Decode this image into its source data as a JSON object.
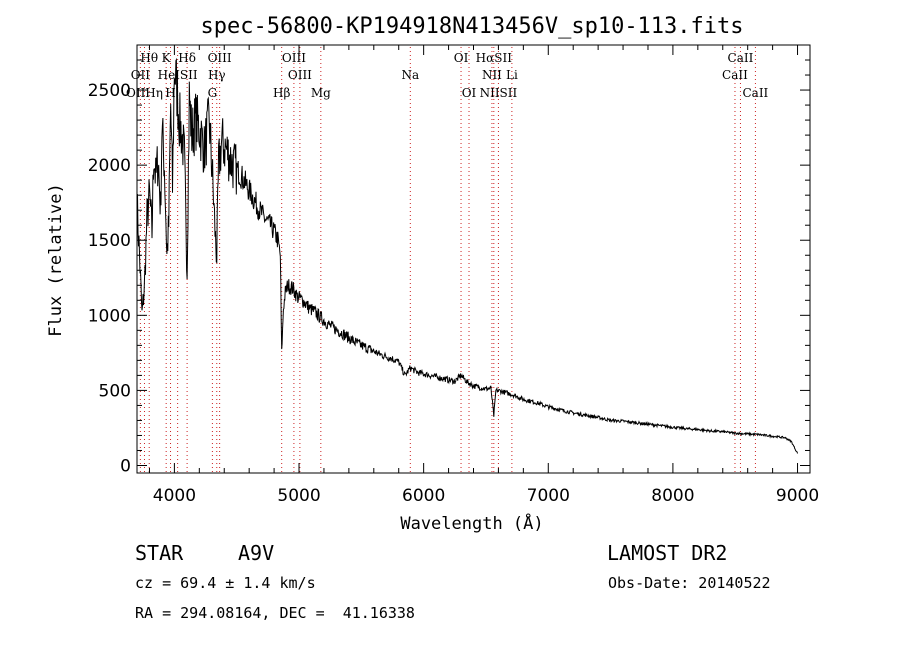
{
  "chart_data": {
    "type": "line",
    "title": "spec-56800-KP194918N413456V_sp10-113.fits",
    "xlabel": "Wavelength (Å)",
    "ylabel": "Flux (relative)",
    "xlim": [
      3700,
      9100
    ],
    "ylim": [
      -50,
      2800
    ],
    "xticks": [
      4000,
      5000,
      6000,
      7000,
      8000,
      9000
    ],
    "yticks": [
      0,
      500,
      1000,
      1500,
      2000,
      2500
    ],
    "grid": false,
    "series": [
      {
        "x": [
          3700,
          3720,
          3740,
          3760,
          3780,
          3800,
          3820,
          3835,
          3850,
          3870,
          3889,
          3900,
          3920,
          3940,
          3955,
          3970,
          3985,
          4000,
          4020,
          4040,
          4060,
          4080,
          4102,
          4120,
          4140,
          4170,
          4200,
          4240,
          4280,
          4310,
          4330,
          4340,
          4355,
          4380,
          4420,
          4470,
          4520,
          4570,
          4620,
          4670,
          4720,
          4770,
          4800,
          4830,
          4850,
          4861,
          4875,
          4890,
          4910,
          4950,
          4990,
          5030,
          5080,
          5130,
          5180,
          5250,
          5350,
          5450,
          5550,
          5650,
          5750,
          5800,
          5850,
          5893,
          5950,
          6050,
          6150,
          6250,
          6300,
          6350,
          6400,
          6450,
          6500,
          6540,
          6563,
          6580,
          6620,
          6680,
          6720,
          6800,
          6900,
          7000,
          7100,
          7200,
          7300,
          7400,
          7500,
          7600,
          7700,
          7800,
          7900,
          8000,
          8100,
          8200,
          8300,
          8400,
          8500,
          8600,
          8700,
          8800,
          8900,
          8950,
          9000
        ],
        "y": [
          1750,
          1400,
          1000,
          1200,
          1650,
          1800,
          1550,
          2100,
          1900,
          2050,
          1700,
          2250,
          2000,
          1400,
          1600,
          2400,
          1850,
          2650,
          2500,
          2300,
          2200,
          2050,
          1300,
          2450,
          2200,
          2300,
          2250,
          2100,
          2300,
          1850,
          1500,
          1400,
          2000,
          2150,
          2100,
          2000,
          1950,
          1880,
          1800,
          1720,
          1650,
          1600,
          1560,
          1500,
          1400,
          750,
          1050,
          1150,
          1200,
          1180,
          1120,
          1100,
          1050,
          1020,
          980,
          930,
          880,
          820,
          780,
          740,
          710,
          690,
          600,
          650,
          620,
          600,
          580,
          560,
          600,
          555,
          530,
          520,
          510,
          515,
          330,
          500,
          495,
          480,
          470,
          440,
          420,
          390,
          370,
          350,
          335,
          320,
          300,
          295,
          285,
          275,
          265,
          255,
          245,
          240,
          230,
          225,
          215,
          210,
          205,
          195,
          185,
          160,
          80
        ]
      }
    ],
    "spectral_lines": [
      {
        "label": "Hθ",
        "x": 3798,
        "row": 1
      },
      {
        "label": "K",
        "x": 3934,
        "row": 1
      },
      {
        "label": "Hδ",
        "x": 4102,
        "row": 1
      },
      {
        "label": "OIII",
        "x": 4363,
        "row": 1
      },
      {
        "label": "OIII",
        "x": 4959,
        "row": 1
      },
      {
        "label": "OI",
        "x": 6300,
        "row": 1
      },
      {
        "label": "HαSII",
        "x": 6563,
        "row": 1
      },
      {
        "label": "CaII",
        "x": 8542,
        "row": 1
      },
      {
        "label": "OII",
        "x": 3727,
        "row": 2
      },
      {
        "label": "HeISII",
        "x": 4026,
        "row": 2
      },
      {
        "label": "Hγ",
        "x": 4340,
        "row": 2
      },
      {
        "label": "OIII",
        "x": 5007,
        "row": 2
      },
      {
        "label": "Na",
        "x": 5893,
        "row": 2
      },
      {
        "label": "NII",
        "x": 6548,
        "row": 2
      },
      {
        "label": "Li",
        "x": 6708,
        "row": 2
      },
      {
        "label": "CaII",
        "x": 8498,
        "row": 2
      },
      {
        "label": "OIIHη",
        "x": 3760,
        "row": 3
      },
      {
        "label": "H",
        "x": 3969,
        "row": 3
      },
      {
        "label": "G",
        "x": 4305,
        "row": 3
      },
      {
        "label": "Hβ",
        "x": 4861,
        "row": 3
      },
      {
        "label": "Mg",
        "x": 5175,
        "row": 3
      },
      {
        "label": "OI",
        "x": 6364,
        "row": 3
      },
      {
        "label": "NIISII",
        "x": 6600,
        "row": 3
      },
      {
        "label": "CaII",
        "x": 8662,
        "row": 3
      }
    ],
    "line_color": "#000000",
    "marker_color": "#cc2222"
  },
  "info": {
    "class_label": "STAR",
    "subclass": "A9V",
    "survey": "LAMOST DR2",
    "cz": "cz = 69.4 ± 1.4 km/s",
    "obs_date": "Obs-Date: 20140522",
    "coords": "RA = 294.08164, DEC =  41.16338"
  }
}
